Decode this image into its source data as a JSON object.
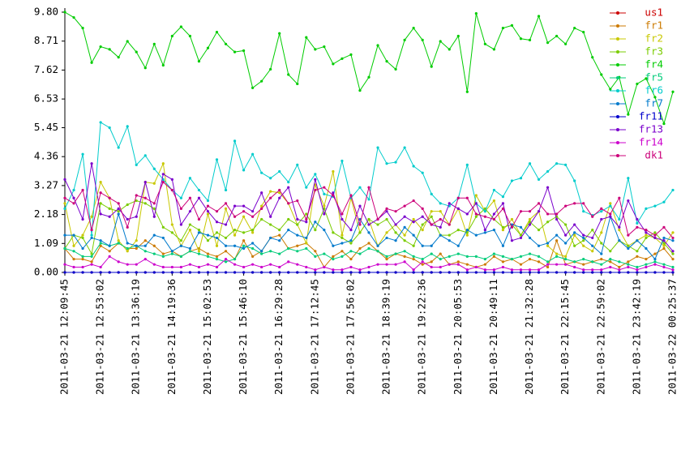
{
  "chart_data": {
    "type": "line",
    "categories": [
      "2011-03-21 12:09:45",
      null,
      null,
      null,
      "2011-03-21 12:53:02",
      null,
      null,
      null,
      "2011-03-21 13:36:19",
      null,
      null,
      null,
      "2011-03-21 14:19:36",
      null,
      null,
      null,
      "2011-03-21 15:02:53",
      null,
      null,
      null,
      "2011-03-21 15:46:10",
      null,
      null,
      null,
      "2011-03-21 16:29:28",
      null,
      null,
      null,
      "2011-03-21 17:12:45",
      null,
      null,
      null,
      "2011-03-21 17:56:02",
      null,
      null,
      null,
      "2011-03-21 18:39:19",
      null,
      null,
      null,
      "2011-03-21 19:22:36",
      null,
      null,
      null,
      "2011-03-21 20:05:53",
      null,
      null,
      null,
      "2011-03-21 20:49:11",
      null,
      null,
      null,
      "2011-03-21 21:32:28",
      null,
      null,
      null,
      "2011-03-21 22:15:45",
      null,
      null,
      null,
      "2011-03-21 22:59:02",
      null,
      null,
      null,
      "2011-03-21 23:42:19",
      null,
      null,
      null,
      "2011-03-22 00:25:37"
    ],
    "ylim": [
      0,
      9.8
    ],
    "yticks": [
      {
        "value": 0,
        "label": "0.00"
      },
      1.09,
      2.18,
      3.27,
      4.36,
      5.45,
      6.53,
      7.62,
      8.71,
      {
        "value": 9.8,
        "label": "9.80"
      }
    ],
    "grid": false,
    "series": [
      {
        "name": "us1",
        "color": "#cc0000",
        "values": [
          0,
          0,
          0,
          0,
          0,
          0,
          0,
          0,
          0,
          0,
          0,
          0,
          0,
          0,
          0,
          0,
          0,
          0,
          0,
          0,
          0,
          0,
          0,
          0,
          0,
          0,
          0,
          0,
          0,
          0,
          0,
          0,
          0,
          0,
          0,
          0,
          0,
          0,
          0,
          0,
          0,
          0,
          0,
          0,
          0,
          0,
          0,
          0,
          0,
          0,
          0,
          0,
          0,
          0,
          0,
          0,
          0,
          0,
          0,
          0,
          0,
          0,
          0,
          0,
          0,
          0,
          0,
          0,
          0
        ]
      },
      {
        "name": "fr1",
        "color": "#cc7a00",
        "values": [
          0.9,
          0.5,
          0.5,
          0.4,
          1.0,
          0.8,
          1.1,
          0.9,
          0.9,
          1.2,
          1.0,
          0.7,
          0.8,
          0.6,
          0.8,
          0.9,
          0.7,
          0.6,
          0.8,
          0.5,
          1.2,
          0.6,
          0.8,
          1.3,
          1.4,
          0.9,
          1.0,
          1.1,
          0.8,
          0.2,
          0.6,
          0.8,
          0.5,
          0.9,
          1.1,
          0.8,
          0.5,
          0.7,
          0.6,
          0.5,
          0.3,
          0.4,
          0.7,
          0.3,
          0.4,
          0.3,
          0.2,
          0.3,
          0.6,
          0.4,
          0.5,
          0.3,
          0.5,
          0.4,
          0.2,
          1.2,
          0.3,
          0.4,
          0.3,
          0.4,
          0.5,
          0.4,
          0.2,
          0.4,
          0.6,
          0.5,
          0.7,
          0.9,
          0.5
        ]
      },
      {
        "name": "fr2",
        "color": "#c8c800",
        "values": [
          2.6,
          1.0,
          1.4,
          2.1,
          3.4,
          2.8,
          1.2,
          0.8,
          1.2,
          3.4,
          3.35,
          4.1,
          1.8,
          1.0,
          1.6,
          0.8,
          2.2,
          1.0,
          2.4,
          1.4,
          2.1,
          1.5,
          2.5,
          3.05,
          3.0,
          2.6,
          1.8,
          1.1,
          3.3,
          2.5,
          3.8,
          1.4,
          2.8,
          1.5,
          2.0,
          1.0,
          1.5,
          1.8,
          1.4,
          2.0,
          1.6,
          2.3,
          2.3,
          1.8,
          2.4,
          1.4,
          2.9,
          2.3,
          2.7,
          1.6,
          2.0,
          1.4,
          2.0,
          2.3,
          1.0,
          0.7,
          0.6,
          1.4,
          1.0,
          0.8,
          1.5,
          2.6,
          1.6,
          1.0,
          1.2,
          1.4,
          1.3,
          1.0,
          1.5
        ]
      },
      {
        "name": "fr3",
        "color": "#7acc00",
        "values": [
          0.9,
          1.4,
          1.3,
          0.7,
          2.6,
          2.4,
          2.3,
          2.55,
          2.7,
          2.6,
          2.4,
          1.7,
          1.5,
          1.2,
          1.8,
          1.6,
          1.2,
          1.5,
          1.3,
          1.6,
          1.5,
          1.6,
          2.0,
          1.8,
          1.6,
          2.0,
          1.8,
          2.2,
          1.6,
          2.4,
          1.5,
          1.3,
          1.1,
          1.5,
          2.0,
          1.8,
          2.0,
          1.5,
          1.2,
          1.0,
          1.8,
          2.1,
          1.4,
          1.4,
          1.6,
          1.5,
          2.1,
          2.4,
          2.0,
          1.7,
          1.8,
          1.4,
          1.9,
          1.6,
          1.9,
          2.1,
          1.8,
          1.0,
          1.2,
          1.6,
          1.1,
          0.8,
          1.2,
          1.0,
          0.8,
          1.3,
          1.5,
          1.1,
          0.7
        ]
      },
      {
        "name": "fr4",
        "color": "#00cc00",
        "values": [
          9.8,
          9.6,
          9.2,
          7.9,
          8.5,
          8.4,
          8.1,
          8.7,
          8.3,
          7.7,
          8.6,
          7.8,
          8.9,
          9.25,
          8.9,
          7.95,
          8.45,
          9.05,
          8.6,
          8.3,
          8.35,
          6.95,
          7.2,
          7.65,
          9.0,
          7.45,
          7.1,
          8.85,
          8.4,
          8.5,
          7.85,
          8.05,
          8.2,
          6.85,
          7.35,
          8.55,
          7.95,
          7.65,
          8.75,
          9.2,
          8.75,
          7.75,
          8.7,
          8.4,
          8.9,
          6.8,
          9.75,
          8.6,
          8.4,
          9.2,
          9.3,
          8.8,
          8.75,
          9.65,
          8.65,
          8.9,
          8.6,
          9.2,
          9.05,
          8.1,
          7.45,
          6.9,
          7.35,
          5.95,
          7.1,
          7.3,
          6.6,
          5.6,
          6.8
        ]
      },
      {
        "name": "fr5",
        "color": "#00cc7a",
        "values": [
          0.9,
          0.8,
          0.6,
          0.6,
          1.1,
          1.0,
          1.1,
          0.9,
          1.0,
          0.8,
          0.7,
          0.6,
          0.7,
          0.6,
          0.8,
          0.7,
          0.6,
          0.5,
          0.4,
          0.5,
          1.0,
          0.9,
          0.7,
          0.8,
          0.7,
          0.9,
          0.8,
          0.9,
          0.6,
          0.7,
          0.5,
          0.6,
          0.8,
          0.7,
          0.9,
          0.8,
          0.6,
          0.7,
          0.8,
          0.6,
          0.5,
          0.7,
          0.5,
          0.6,
          0.7,
          0.6,
          0.6,
          0.5,
          0.7,
          0.6,
          0.5,
          0.6,
          0.7,
          0.6,
          0.4,
          0.6,
          0.5,
          0.4,
          0.5,
          0.4,
          0.3,
          0.5,
          0.4,
          0.3,
          0.2,
          0.3,
          0.4,
          0.3,
          0.2
        ]
      },
      {
        "name": "fr6",
        "color": "#00cccc",
        "values": [
          2.4,
          3.1,
          4.45,
          1.4,
          5.65,
          5.45,
          4.7,
          5.5,
          4.05,
          4.4,
          3.9,
          3.5,
          3.1,
          2.8,
          3.55,
          3.1,
          2.7,
          4.25,
          3.1,
          4.95,
          3.85,
          4.45,
          3.75,
          3.55,
          3.8,
          3.4,
          4.05,
          3.2,
          3.7,
          2.95,
          2.85,
          4.2,
          2.8,
          3.2,
          2.75,
          4.7,
          4.1,
          4.15,
          4.7,
          4.0,
          3.75,
          2.95,
          2.6,
          2.5,
          2.8,
          4.05,
          2.6,
          2.3,
          3.1,
          2.85,
          3.45,
          3.55,
          4.1,
          3.5,
          3.8,
          4.1,
          4.05,
          3.45,
          2.3,
          2.15,
          2.3,
          2.5,
          2.0,
          3.55,
          1.85,
          2.4,
          2.5,
          2.65,
          3.1
        ]
      },
      {
        "name": "fr7",
        "color": "#007acc",
        "values": [
          1.4,
          1.4,
          0.9,
          1.3,
          1.2,
          1.0,
          2.2,
          1.1,
          1.0,
          1.0,
          1.4,
          1.3,
          0.8,
          1.0,
          0.9,
          1.5,
          1.4,
          1.3,
          1.0,
          1.0,
          0.9,
          1.1,
          0.8,
          1.3,
          1.2,
          1.6,
          1.4,
          1.3,
          1.9,
          1.6,
          1.0,
          1.1,
          1.2,
          2.0,
          1.5,
          1.0,
          1.3,
          1.2,
          1.7,
          1.4,
          1.0,
          1.0,
          1.4,
          1.2,
          1.0,
          1.6,
          1.4,
          1.5,
          1.6,
          1.0,
          1.8,
          1.7,
          1.3,
          1.0,
          1.1,
          1.4,
          1.1,
          1.5,
          1.3,
          1.0,
          0.7,
          2.1,
          1.2,
          0.9,
          1.2,
          0.9,
          0.5,
          1.3,
          1.2
        ]
      },
      {
        "name": "fr11",
        "color": "#0000cc",
        "values": [
          0,
          0,
          0,
          0,
          0,
          0,
          0,
          0,
          0,
          0,
          0,
          0,
          0,
          0,
          0,
          0,
          0,
          0,
          0,
          0,
          0,
          0,
          0,
          0,
          0,
          0,
          0,
          0,
          0,
          0,
          0,
          0,
          0,
          0,
          0,
          0,
          0,
          0,
          0,
          0,
          0,
          0,
          0,
          0,
          0,
          0,
          0,
          0,
          0,
          0,
          0,
          0,
          0,
          0,
          0,
          0,
          0,
          0,
          0,
          0,
          0,
          0,
          0,
          0,
          0,
          0,
          0,
          0,
          0
        ]
      },
      {
        "name": "fr13",
        "color": "#7a00cc",
        "values": [
          3.5,
          2.8,
          2.0,
          4.1,
          2.2,
          2.1,
          2.4,
          2.0,
          2.1,
          3.4,
          2.1,
          3.7,
          3.5,
          1.8,
          2.3,
          2.8,
          2.3,
          1.9,
          1.8,
          2.5,
          2.5,
          2.3,
          3.0,
          2.1,
          2.8,
          3.2,
          2.0,
          1.9,
          3.5,
          2.2,
          3.0,
          2.0,
          1.6,
          2.5,
          1.8,
          2.0,
          2.3,
          1.8,
          2.1,
          1.9,
          2.1,
          1.8,
          1.7,
          2.6,
          2.4,
          2.2,
          2.6,
          1.6,
          2.2,
          2.6,
          1.2,
          1.3,
          1.8,
          2.3,
          3.2,
          2.0,
          1.4,
          1.8,
          1.4,
          1.3,
          2.0,
          2.1,
          1.7,
          2.7,
          2.0,
          1.5,
          1.3,
          1.2,
          0.8
        ]
      },
      {
        "name": "fr14",
        "color": "#cc00cc",
        "values": [
          0.3,
          0.2,
          0.2,
          0.3,
          0.2,
          0.6,
          0.4,
          0.3,
          0.3,
          0.5,
          0.3,
          0.2,
          0.2,
          0.2,
          0.3,
          0.2,
          0.3,
          0.2,
          0.5,
          0.3,
          0.2,
          0.3,
          0.2,
          0.3,
          0.2,
          0.4,
          0.3,
          0.2,
          0.1,
          0.2,
          0.1,
          0.1,
          0.2,
          0.1,
          0.2,
          0.3,
          0.3,
          0.3,
          0.4,
          0.1,
          0.4,
          0.2,
          0.2,
          0.3,
          0.3,
          0.1,
          0.2,
          0.1,
          0.1,
          0.2,
          0.1,
          0.1,
          0.1,
          0.1,
          0.3,
          0.3,
          0.3,
          0.2,
          0.1,
          0.1,
          0.1,
          0.2,
          0.1,
          0.2,
          0.1,
          0.2,
          0.3,
          0.2,
          0.1
        ]
      },
      {
        "name": "dk1",
        "color": "#cc007a",
        "values": [
          2.8,
          2.6,
          3.1,
          1.6,
          3.0,
          2.8,
          2.6,
          1.7,
          2.9,
          2.8,
          2.6,
          3.4,
          3.1,
          2.4,
          2.8,
          2.0,
          2.5,
          2.3,
          2.6,
          2.1,
          2.3,
          2.1,
          2.4,
          2.8,
          3.1,
          2.6,
          2.7,
          2.0,
          3.1,
          3.2,
          2.9,
          2.2,
          2.9,
          1.8,
          3.2,
          2.0,
          2.4,
          2.3,
          2.5,
          2.7,
          2.4,
          1.8,
          2.0,
          1.8,
          2.8,
          2.8,
          2.2,
          2.1,
          2.0,
          2.4,
          1.7,
          2.3,
          2.3,
          2.6,
          2.2,
          2.2,
          2.5,
          2.6,
          2.6,
          2.1,
          2.4,
          2.2,
          2.8,
          1.4,
          1.7,
          1.6,
          1.4,
          1.7,
          1.3
        ]
      }
    ]
  }
}
